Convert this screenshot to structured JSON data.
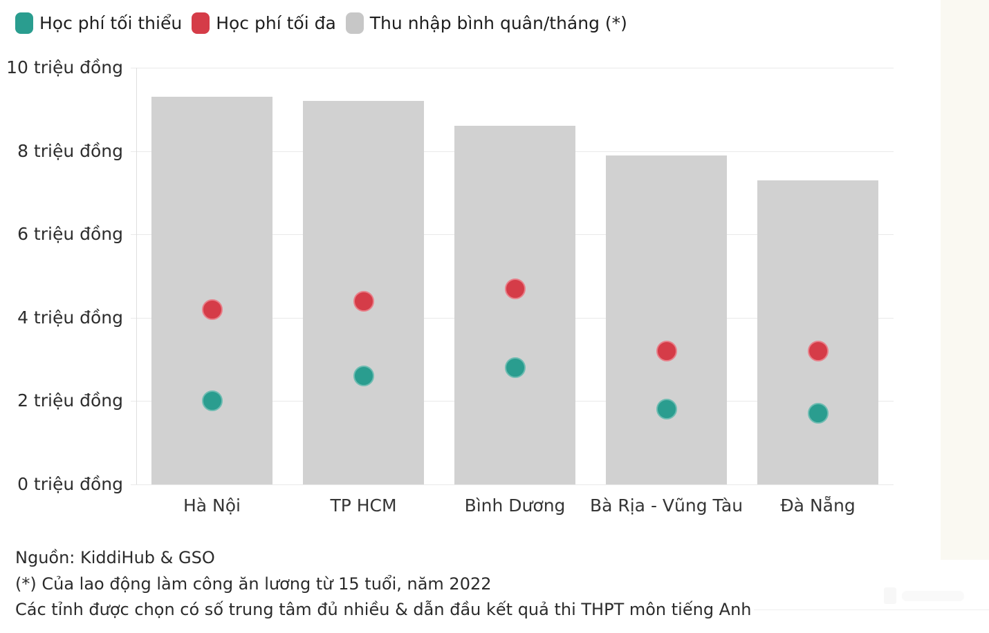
{
  "legend": {
    "items": [
      {
        "name": "min-tuition",
        "label": "Học phí tối thiểu",
        "color": "#2a9d8f"
      },
      {
        "name": "max-tuition",
        "label": "Học phí tối đa",
        "color": "#d53c48"
      },
      {
        "name": "avg-income",
        "label": "Thu nhập bình quân/tháng (*)",
        "color": "#c7c7c7"
      }
    ]
  },
  "chart_data": {
    "type": "bar",
    "categories": [
      "Hà Nội",
      "TP HCM",
      "Bình Dương",
      "Bà Rịa - Vũng Tàu",
      "Đà Nẵng"
    ],
    "series": [
      {
        "name": "Thu nhập bình quân/tháng (*)",
        "type": "bar",
        "color": "#d1d1d1",
        "values": [
          9.3,
          9.2,
          8.6,
          7.9,
          7.3
        ]
      },
      {
        "name": "Học phí tối đa",
        "type": "scatter",
        "color": "#d53c48",
        "edge": "#e8808a",
        "values": [
          4.2,
          4.4,
          4.7,
          3.2,
          3.2
        ]
      },
      {
        "name": "Học phí tối thiểu",
        "type": "scatter",
        "color": "#2a9d8f",
        "edge": "#6fbcb2",
        "values": [
          2.0,
          2.6,
          2.8,
          1.8,
          1.7
        ]
      }
    ],
    "unit": "triệu đồng",
    "ylim": [
      0,
      10
    ],
    "yticks": [
      {
        "value": 10,
        "label": "10 triệu đồng"
      },
      {
        "value": 8,
        "label": "8 triệu đồng"
      },
      {
        "value": 6,
        "label": "6 triệu đồng"
      },
      {
        "value": 4,
        "label": "4 triệu đồng"
      },
      {
        "value": 2,
        "label": "2 triệu đồng"
      },
      {
        "value": 0,
        "label": "0 triệu đồng"
      }
    ],
    "grid": true,
    "legend_position": "top-left",
    "title": "",
    "xlabel": "",
    "ylabel": ""
  },
  "footer": {
    "source": "Nguồn: KiddiHub & GSO",
    "note1": "(*) Của lao động làm công ăn lương từ 15 tuổi, năm 2022",
    "note2": "Các tỉnh được chọn có số trung tâm đủ nhiều & dẫn đầu kết quả thi THPT môn tiếng Anh"
  }
}
